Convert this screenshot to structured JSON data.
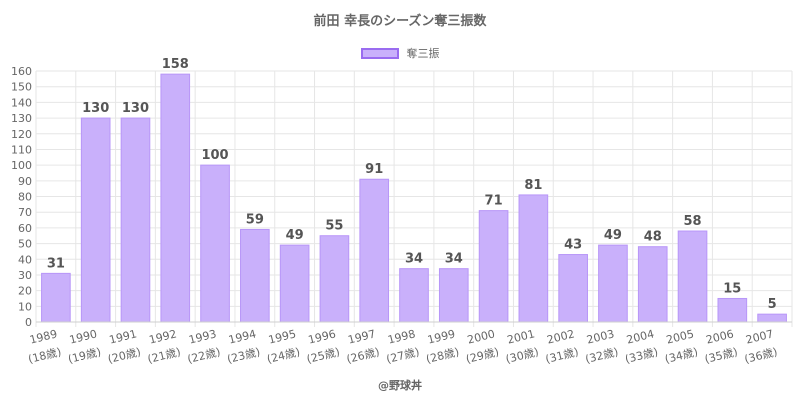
{
  "title": "前田 幸長のシーズン奪三振数",
  "legend": {
    "label": "奪三振"
  },
  "footer": "@野球丼",
  "colors": {
    "bar_fill": "#c9b0fb",
    "bar_stroke": "#b896f8",
    "legend_border": "#9a6cf0",
    "grid": "#e6e6e6",
    "axis_text": "#666666",
    "label_text": "#555555"
  },
  "chart_data": {
    "type": "bar",
    "categories": [
      "1989",
      "1990",
      "1991",
      "1992",
      "1993",
      "1994",
      "1995",
      "1996",
      "1997",
      "1998",
      "1999",
      "2000",
      "2001",
      "2002",
      "2003",
      "2004",
      "2005",
      "2006",
      "2007"
    ],
    "category_sublabels": [
      "(18歳)",
      "(19歳)",
      "(20歳)",
      "(21歳)",
      "(22歳)",
      "(23歳)",
      "(24歳)",
      "(25歳)",
      "(26歳)",
      "(27歳)",
      "(28歳)",
      "(29歳)",
      "(30歳)",
      "(31歳)",
      "(32歳)",
      "(33歳)",
      "(34歳)",
      "(35歳)",
      "(36歳)"
    ],
    "series": [
      {
        "name": "奪三振",
        "values": [
          31,
          130,
          130,
          158,
          100,
          59,
          49,
          55,
          91,
          34,
          34,
          71,
          81,
          43,
          49,
          48,
          58,
          15,
          5
        ]
      }
    ],
    "ylim": [
      0,
      160
    ],
    "ytick_step": 10,
    "grid": true,
    "legend_position": "top"
  }
}
